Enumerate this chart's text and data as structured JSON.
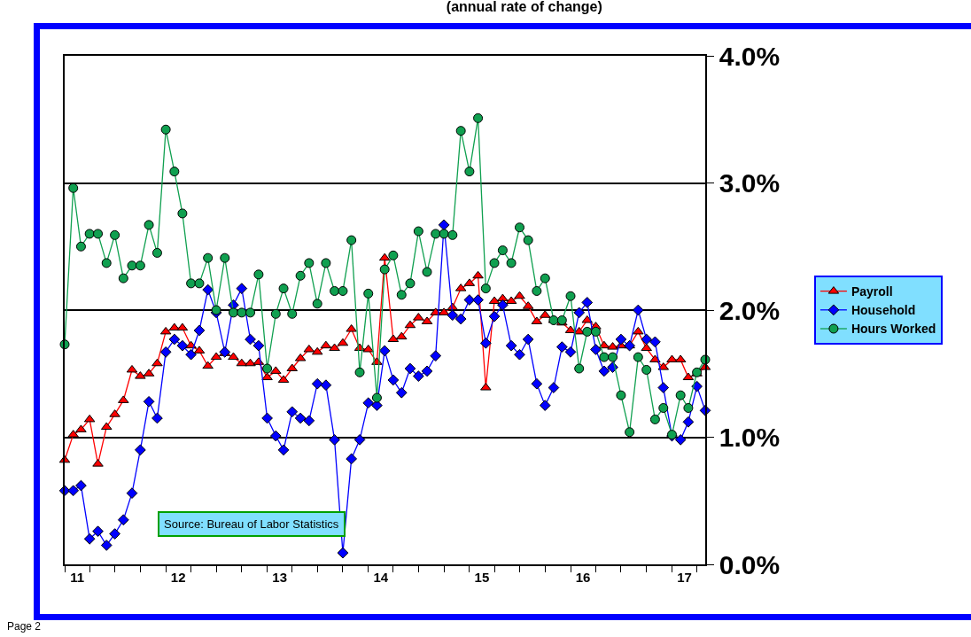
{
  "chart_data": {
    "type": "line",
    "title": "(annual rate of change)",
    "x": [
      "2011-01",
      "2011-02",
      "2011-03",
      "2011-04",
      "2011-05",
      "2011-06",
      "2011-07",
      "2011-08",
      "2011-09",
      "2011-10",
      "2011-11",
      "2011-12",
      "2012-01",
      "2012-02",
      "2012-03",
      "2012-04",
      "2012-05",
      "2012-06",
      "2012-07",
      "2012-08",
      "2012-09",
      "2012-10",
      "2012-11",
      "2012-12",
      "2013-01",
      "2013-02",
      "2013-03",
      "2013-04",
      "2013-05",
      "2013-06",
      "2013-07",
      "2013-08",
      "2013-09",
      "2013-10",
      "2013-11",
      "2013-12",
      "2014-01",
      "2014-02",
      "2014-03",
      "2014-04",
      "2014-05",
      "2014-06",
      "2014-07",
      "2014-08",
      "2014-09",
      "2014-10",
      "2014-11",
      "2014-12",
      "2015-01",
      "2015-02",
      "2015-03",
      "2015-04",
      "2015-05",
      "2015-06",
      "2015-07",
      "2015-08",
      "2015-09",
      "2015-10",
      "2015-11",
      "2015-12",
      "2016-01",
      "2016-02",
      "2016-03",
      "2016-04",
      "2016-05",
      "2016-06",
      "2016-07",
      "2016-08",
      "2016-09",
      "2016-10",
      "2016-11",
      "2016-12",
      "2017-01",
      "2017-02",
      "2017-03",
      "2017-04",
      "2017-05"
    ],
    "series": [
      {
        "name": "Payroll",
        "color": "#ff0000",
        "marker": "triangle",
        "values": [
          0.82,
          1.02,
          1.06,
          1.14,
          0.79,
          1.08,
          1.18,
          1.29,
          1.53,
          1.48,
          1.5,
          1.58,
          1.83,
          1.86,
          1.86,
          1.72,
          1.68,
          1.56,
          1.63,
          1.66,
          1.63,
          1.58,
          1.58,
          1.59,
          1.47,
          1.52,
          1.45,
          1.54,
          1.62,
          1.69,
          1.67,
          1.72,
          1.7,
          1.74,
          1.85,
          1.7,
          1.69,
          1.59,
          2.41,
          1.77,
          1.79,
          1.88,
          1.94,
          1.91,
          1.98,
          1.98,
          2.02,
          2.17,
          2.21,
          2.27,
          1.39,
          2.07,
          2.09,
          2.07,
          2.11,
          2.03,
          1.91,
          1.96,
          1.92,
          1.9,
          1.84,
          1.83,
          1.92,
          1.87,
          1.72,
          1.71,
          1.72,
          1.72,
          1.83,
          1.7,
          1.61,
          1.55,
          1.61,
          1.61,
          1.47,
          1.5,
          1.55
        ]
      },
      {
        "name": "Household",
        "color": "#0000ff",
        "marker": "diamond",
        "values": [
          0.58,
          0.58,
          0.62,
          0.2,
          0.26,
          0.15,
          0.24,
          0.35,
          0.56,
          0.9,
          1.28,
          1.15,
          1.67,
          1.77,
          1.72,
          1.65,
          1.84,
          2.16,
          1.98,
          1.67,
          2.04,
          2.17,
          1.77,
          1.72,
          1.15,
          1.01,
          0.9,
          1.2,
          1.15,
          1.13,
          1.42,
          1.41,
          0.98,
          0.09,
          0.83,
          0.98,
          1.27,
          1.25,
          1.68,
          1.45,
          1.35,
          1.54,
          1.48,
          1.52,
          1.64,
          2.67,
          1.96,
          1.93,
          2.08,
          2.08,
          1.74,
          1.95,
          2.04,
          1.72,
          1.65,
          1.77,
          1.42,
          1.25,
          1.39,
          1.71,
          1.67,
          1.98,
          2.06,
          1.69,
          1.52,
          1.55,
          1.77,
          1.72,
          2.0,
          1.77,
          1.75,
          1.39,
          1.01,
          0.98,
          1.12,
          1.4,
          1.21
        ]
      },
      {
        "name": "Hours Worked",
        "color": "#10a050",
        "marker": "circle",
        "values": [
          1.73,
          2.96,
          2.5,
          2.6,
          2.6,
          2.37,
          2.59,
          2.25,
          2.35,
          2.35,
          2.67,
          2.45,
          3.42,
          3.09,
          2.76,
          2.21,
          2.21,
          2.41,
          2.0,
          2.41,
          1.98,
          1.98,
          1.98,
          2.28,
          1.54,
          1.97,
          2.17,
          1.97,
          2.27,
          2.37,
          2.05,
          2.37,
          2.15,
          2.15,
          2.55,
          1.51,
          2.13,
          1.31,
          2.32,
          2.43,
          2.12,
          2.21,
          2.62,
          2.3,
          2.6,
          2.6,
          2.59,
          3.41,
          3.09,
          3.51,
          2.17,
          2.37,
          2.47,
          2.37,
          2.65,
          2.55,
          2.15,
          2.25,
          1.92,
          1.92,
          2.11,
          1.54,
          1.83,
          1.83,
          1.63,
          1.63,
          1.33,
          1.04,
          1.63,
          1.53,
          1.14,
          1.23,
          1.02,
          1.33,
          1.23,
          1.51,
          1.61
        ]
      }
    ],
    "xlim": [
      "2011-01",
      "2017-05"
    ],
    "xticks": [
      {
        "value": "2011-02-15",
        "label": "11"
      },
      {
        "value": "2012-02-15",
        "label": "12"
      },
      {
        "value": "2013-02-15",
        "label": "13"
      },
      {
        "value": "2014-02-15",
        "label": "14"
      },
      {
        "value": "2015-02-15",
        "label": "15"
      },
      {
        "value": "2016-02-15",
        "label": "16"
      },
      {
        "value": "2017-02-15",
        "label": "17"
      },
      {
        "value": "2011-01",
        "label": null
      },
      {
        "value": "2011-04",
        "label": null
      },
      {
        "value": "2011-07",
        "label": null
      },
      {
        "value": "2011-10",
        "label": null
      },
      {
        "value": "2012-01",
        "label": null
      },
      {
        "value": "2012-04",
        "label": null
      },
      {
        "value": "2012-07",
        "label": null
      },
      {
        "value": "2012-10",
        "label": null
      },
      {
        "value": "2013-01",
        "label": null
      },
      {
        "value": "2013-04",
        "label": null
      },
      {
        "value": "2013-07",
        "label": null
      },
      {
        "value": "2013-10",
        "label": null
      },
      {
        "value": "2014-01",
        "label": null
      },
      {
        "value": "2014-04",
        "label": null
      },
      {
        "value": "2014-07",
        "label": null
      },
      {
        "value": "2014-10",
        "label": null
      },
      {
        "value": "2015-01",
        "label": null
      },
      {
        "value": "2015-04",
        "label": null
      },
      {
        "value": "2015-07",
        "label": null
      },
      {
        "value": "2015-10",
        "label": null
      },
      {
        "value": "2016-01",
        "label": null
      },
      {
        "value": "2016-04",
        "label": null
      },
      {
        "value": "2016-07",
        "label": null
      },
      {
        "value": "2016-10",
        "label": null
      },
      {
        "value": "2017-01",
        "label": null
      },
      {
        "value": "2017-04",
        "label": null
      }
    ],
    "ylim": [
      0,
      4
    ],
    "yticks": [
      {
        "value": 0,
        "label": "0.0%"
      },
      {
        "value": 1,
        "label": "1.0%"
      },
      {
        "value": 2,
        "label": "2.0%"
      },
      {
        "value": 3,
        "label": "3.0%"
      },
      {
        "value": 4,
        "label": "4.0%"
      }
    ],
    "grid": "y",
    "legend": "right",
    "line_style": "solid",
    "annotations": [
      "Source: Bureau of Labor Statistics",
      "Page 2"
    ]
  }
}
